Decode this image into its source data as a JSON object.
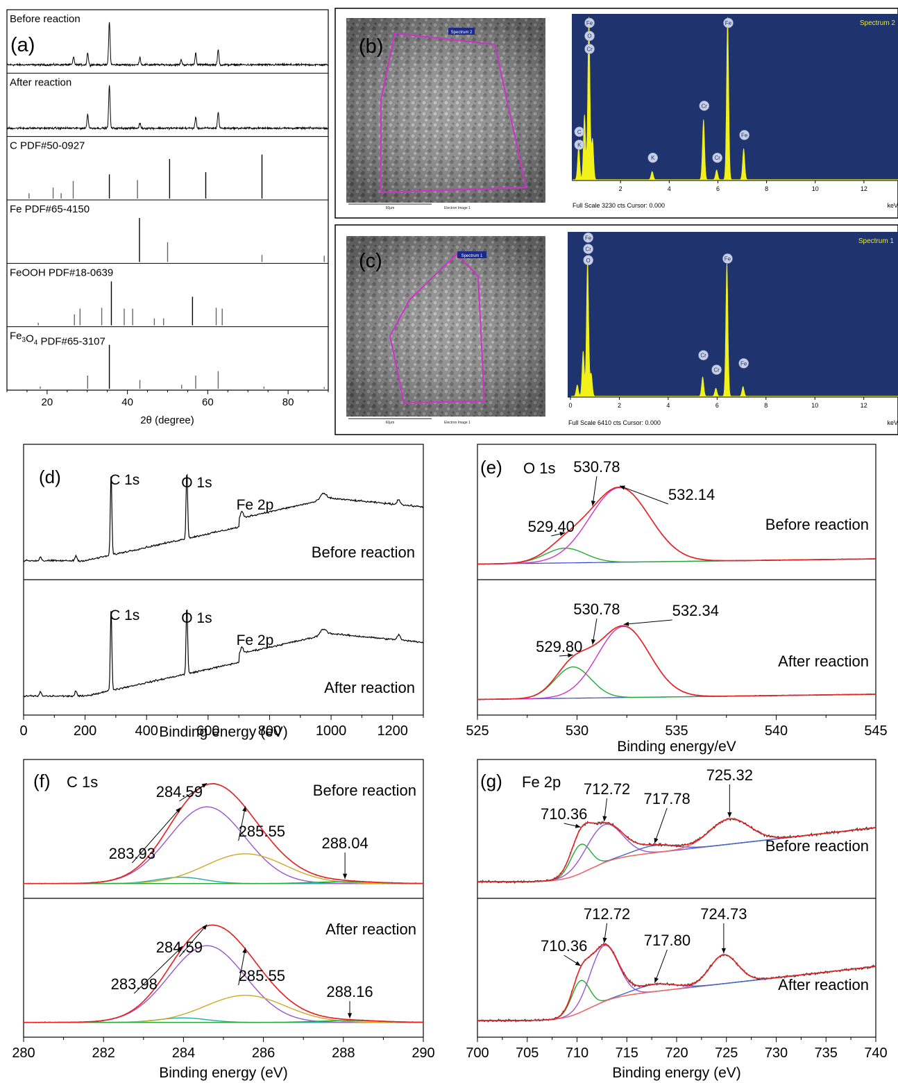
{
  "panel_a": {
    "label": "(a)",
    "xlabel": "2θ (degree)",
    "xlim": [
      10,
      90
    ],
    "xticks": [
      20,
      40,
      60,
      80
    ],
    "strips": [
      {
        "label": "Before reaction",
        "kind": "pattern",
        "peaks": [
          [
            26.6,
            0.18
          ],
          [
            30.1,
            0.28
          ],
          [
            35.5,
            1.0
          ],
          [
            43.1,
            0.18
          ],
          [
            53.4,
            0.12
          ],
          [
            57.0,
            0.28
          ],
          [
            62.6,
            0.35
          ]
        ]
      },
      {
        "label": "After reaction",
        "kind": "pattern",
        "peaks": [
          [
            30.1,
            0.32
          ],
          [
            35.5,
            1.0
          ],
          [
            43.1,
            0.12
          ],
          [
            57.0,
            0.25
          ],
          [
            62.6,
            0.38
          ]
        ]
      },
      {
        "label": "C PDF#50-0927",
        "kind": "stick",
        "color": "#000000",
        "peaks": [
          [
            15.5,
            0.12
          ],
          [
            21.5,
            0.25
          ],
          [
            23.5,
            0.12
          ],
          [
            26.5,
            0.4
          ],
          [
            35.5,
            0.55
          ],
          [
            42.5,
            0.42
          ],
          [
            50.5,
            0.9
          ],
          [
            59.5,
            0.6
          ],
          [
            73.5,
            1.0
          ]
        ]
      },
      {
        "label": "Fe PDF#65-4150",
        "kind": "stick",
        "color": "#000000",
        "peaks": [
          [
            43.0,
            1.0
          ],
          [
            50.0,
            0.45
          ],
          [
            73.5,
            0.16
          ],
          [
            89.0,
            0.14
          ]
        ]
      },
      {
        "label": "FeOOH PDF#18-0639",
        "kind": "stick",
        "color": "#000000",
        "peaks": [
          [
            17.8,
            0.06
          ],
          [
            26.8,
            0.25
          ],
          [
            28.2,
            0.38
          ],
          [
            33.6,
            0.4
          ],
          [
            36.0,
            1.0
          ],
          [
            39.2,
            0.38
          ],
          [
            41.3,
            0.38
          ],
          [
            46.7,
            0.16
          ],
          [
            49.0,
            0.16
          ],
          [
            56.2,
            0.65
          ],
          [
            62.1,
            0.4
          ],
          [
            63.6,
            0.38
          ]
        ]
      },
      {
        "label": "Fe3O4 PDF#65-3107",
        "kind": "stick",
        "color": "#000000",
        "peaks": [
          [
            18.3,
            0.05
          ],
          [
            30.1,
            0.3
          ],
          [
            35.5,
            1.0
          ],
          [
            43.1,
            0.2
          ],
          [
            53.5,
            0.09
          ],
          [
            57.0,
            0.3
          ],
          [
            62.6,
            0.4
          ],
          [
            74.0,
            0.05
          ],
          [
            89.0,
            0.04
          ]
        ]
      }
    ]
  },
  "panel_b": {
    "label": "(b)",
    "image_spectrum_tag": "Spectrum 2",
    "scalebar_text": "60μm",
    "image_caption": "Electron Image 1",
    "spectrum_title": "Spectrum 2",
    "footer": "Full Scale 3230 cts Cursor: 0.000",
    "unit": "keV",
    "xticks": [
      2,
      4,
      6,
      8,
      10,
      12
    ],
    "peaks": [
      [
        0.28,
        0.2
      ],
      [
        0.52,
        0.4
      ],
      [
        0.7,
        1.0
      ],
      [
        0.85,
        0.25
      ],
      [
        3.3,
        0.05
      ],
      [
        5.41,
        0.37
      ],
      [
        5.95,
        0.06
      ],
      [
        6.4,
        1.0
      ],
      [
        7.06,
        0.19
      ]
    ],
    "element_labels": [
      {
        "text": "Fe",
        "kev": 0.7,
        "level": 0.97
      },
      {
        "text": "O",
        "kev": 0.7,
        "level": 0.89
      },
      {
        "text": "Cr",
        "kev": 0.7,
        "level": 0.81
      },
      {
        "text": "C",
        "kev": 0.28,
        "level": 0.3
      },
      {
        "text": "K",
        "kev": 0.28,
        "level": 0.22
      },
      {
        "text": "K",
        "kev": 3.3,
        "level": 0.14
      },
      {
        "text": "Cr",
        "kev": 5.41,
        "level": 0.46
      },
      {
        "text": "Cr",
        "kev": 5.95,
        "level": 0.14
      },
      {
        "text": "Fe",
        "kev": 6.4,
        "level": 0.97
      },
      {
        "text": "Fe",
        "kev": 7.06,
        "level": 0.28
      }
    ]
  },
  "panel_c": {
    "label": "(c)",
    "image_spectrum_tag": "Spectrum 1",
    "scalebar_text": "60μm",
    "image_caption": "Electron Image 1",
    "spectrum_title": "Spectrum 1",
    "footer": "Full Scale 6410 cts Cursor: 0.000",
    "unit": "keV",
    "xticks": [
      0,
      2,
      4,
      6,
      8,
      10,
      12
    ],
    "peaks": [
      [
        0.28,
        0.07
      ],
      [
        0.52,
        0.28
      ],
      [
        0.7,
        0.85
      ],
      [
        0.85,
        0.14
      ],
      [
        5.41,
        0.12
      ],
      [
        5.95,
        0.05
      ],
      [
        6.4,
        0.83
      ],
      [
        7.06,
        0.06
      ]
    ],
    "element_labels": [
      {
        "text": "Fe",
        "kev": 0.7,
        "level": 0.99
      },
      {
        "text": "Cr",
        "kev": 0.7,
        "level": 0.92
      },
      {
        "text": "O",
        "kev": 0.7,
        "level": 0.85
      },
      {
        "text": "Cr",
        "kev": 5.41,
        "level": 0.26
      },
      {
        "text": "Cr",
        "kev": 5.95,
        "level": 0.17
      },
      {
        "text": "Fe",
        "kev": 6.4,
        "level": 0.86
      },
      {
        "text": "Fe",
        "kev": 7.06,
        "level": 0.21
      }
    ]
  },
  "chart_data": [
    {
      "panel": "d",
      "type": "line",
      "label": "(d)",
      "xlabel": "Binding energy (eV)",
      "xlim": [
        0,
        1300
      ],
      "xticks": [
        0,
        200,
        400,
        600,
        800,
        1000,
        1200
      ],
      "sub": [
        {
          "text": "Before reaction",
          "annotations": [
            {
              "text": "C 1s",
              "x": 284.6
            },
            {
              "text": "O 1s",
              "x": 531
            },
            {
              "text": "Fe 2p",
              "x": 710
            }
          ]
        },
        {
          "text": "After reaction",
          "annotations": [
            {
              "text": "C 1s",
              "x": 284.6
            },
            {
              "text": "O 1s",
              "x": 531
            },
            {
              "text": "Fe 2p",
              "x": 710
            }
          ]
        }
      ]
    },
    {
      "panel": "e",
      "type": "line",
      "label": "(e)",
      "title": "O 1s",
      "xlabel": "Binding energy/eV",
      "xlim": [
        525,
        545
      ],
      "xticks": [
        525,
        530,
        535,
        540,
        545
      ],
      "sub": [
        {
          "text": "Before reaction",
          "components": [
            {
              "center": 529.4,
              "height": 0.17,
              "width": 1.0,
              "color": "#22aa33"
            },
            {
              "center": 532.14,
              "height": 0.86,
              "width": 1.5,
              "color": "#cc33cc"
            }
          ],
          "annotations": [
            {
              "text": "530.78",
              "x": 530.78
            },
            {
              "text": "532.14",
              "x": 532.14
            },
            {
              "text": "529.40",
              "x": 529.4
            }
          ]
        },
        {
          "text": "After reaction",
          "components": [
            {
              "center": 529.8,
              "height": 0.36,
              "width": 0.9,
              "color": "#22aa33"
            },
            {
              "center": 532.34,
              "height": 0.82,
              "width": 1.3,
              "color": "#cc33cc"
            }
          ],
          "annotations": [
            {
              "text": "530.78",
              "x": 530.78
            },
            {
              "text": "532.34",
              "x": 532.34
            },
            {
              "text": "529.80",
              "x": 529.8
            }
          ]
        }
      ]
    },
    {
      "panel": "f",
      "type": "line",
      "label": "(f)",
      "title": "C 1s",
      "xlabel": "Binding energy (eV)",
      "xlim": [
        280,
        290
      ],
      "xticks": [
        280,
        282,
        284,
        286,
        288,
        290
      ],
      "sub": [
        {
          "text": "Before reaction",
          "components": [
            {
              "center": 283.93,
              "height": 0.07,
              "width": 0.6,
              "color": "#22aaaa"
            },
            {
              "center": 284.59,
              "height": 0.85,
              "width": 0.95,
              "color": "#9955cc"
            },
            {
              "center": 285.55,
              "height": 0.33,
              "width": 1.0,
              "color": "#ccaa22"
            },
            {
              "center": 288.04,
              "height": 0.02,
              "width": 0.8,
              "color": "#22aa33"
            }
          ],
          "annotations": [
            {
              "text": "284.59",
              "x": 284.59
            },
            {
              "text": "283.93",
              "x": 283.93
            },
            {
              "text": "285.55",
              "x": 285.55
            },
            {
              "text": "288.04",
              "x": 288.04
            }
          ]
        },
        {
          "text": "After reaction",
          "components": [
            {
              "center": 283.98,
              "height": 0.05,
              "width": 0.6,
              "color": "#22aaaa"
            },
            {
              "center": 284.59,
              "height": 0.85,
              "width": 0.95,
              "color": "#9955cc"
            },
            {
              "center": 285.55,
              "height": 0.3,
              "width": 1.0,
              "color": "#ccaa22"
            },
            {
              "center": 288.16,
              "height": 0.02,
              "width": 0.8,
              "color": "#22aa33"
            }
          ],
          "annotations": [
            {
              "text": "284.59",
              "x": 284.59
            },
            {
              "text": "283.98",
              "x": 283.98
            },
            {
              "text": "285.55",
              "x": 285.55
            },
            {
              "text": "288.16",
              "x": 288.16
            }
          ]
        }
      ]
    },
    {
      "panel": "g",
      "type": "line",
      "label": "(g)",
      "title": "Fe 2p",
      "xlabel": "Binding energy (eV)",
      "xlim": [
        700,
        740
      ],
      "xticks": [
        700,
        705,
        710,
        715,
        720,
        725,
        730,
        735,
        740
      ],
      "sub": [
        {
          "text": "Before reaction",
          "components": [
            {
              "center": 710.36,
              "height": 0.32,
              "width": 1.0,
              "color": "#22aa33"
            },
            {
              "center": 712.72,
              "height": 0.42,
              "width": 1.8,
              "color": "#9955cc"
            },
            {
              "center": 717.78,
              "height": 0.08,
              "width": 2.0,
              "color": "#4466cc"
            },
            {
              "center": 725.32,
              "height": 0.28,
              "width": 2.0,
              "color": "#ff6666"
            }
          ],
          "annotations": [
            {
              "text": "712.72",
              "x": 712.72
            },
            {
              "text": "725.32",
              "x": 725.32
            },
            {
              "text": "710.36",
              "x": 710.36
            },
            {
              "text": "717.78",
              "x": 717.78
            }
          ]
        },
        {
          "text": "After reaction",
          "components": [
            {
              "center": 710.36,
              "height": 0.35,
              "width": 0.9,
              "color": "#22aa33"
            },
            {
              "center": 712.72,
              "height": 0.62,
              "width": 1.4,
              "color": "#9955cc"
            },
            {
              "center": 717.8,
              "height": 0.08,
              "width": 2.0,
              "color": "#4466cc"
            },
            {
              "center": 724.73,
              "height": 0.32,
              "width": 1.4,
              "color": "#ff6666"
            }
          ],
          "annotations": [
            {
              "text": "712.72",
              "x": 712.72
            },
            {
              "text": "724.73",
              "x": 724.73
            },
            {
              "text": "710.36",
              "x": 710.36
            },
            {
              "text": "717.80",
              "x": 717.8
            }
          ]
        }
      ]
    }
  ]
}
